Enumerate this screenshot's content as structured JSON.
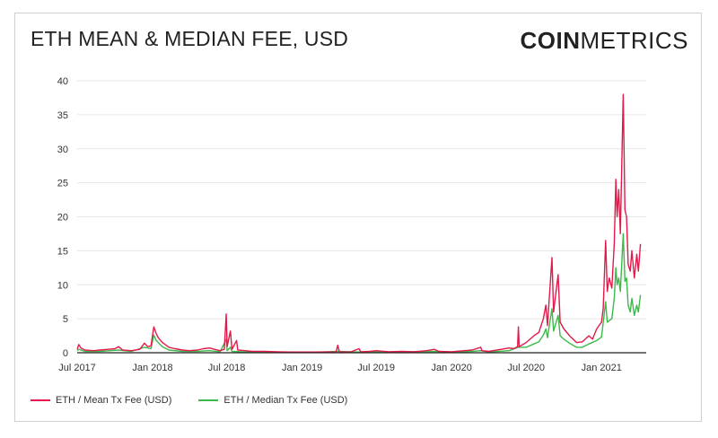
{
  "header": {
    "title": "ETH MEAN & MEDIAN FEE, USD",
    "logo_bold": "COIN",
    "logo_light": "METRICS"
  },
  "colors": {
    "mean": "#e2194b",
    "median": "#3db84a",
    "grid": "#e6e6e6",
    "axis": "#222222"
  },
  "chart_data": {
    "type": "line",
    "title": "ETH MEAN & MEDIAN FEE, USD",
    "xlabel": "",
    "ylabel": "",
    "ylim": [
      0,
      40
    ],
    "yticks": [
      0,
      5,
      10,
      15,
      20,
      25,
      30,
      35,
      40
    ],
    "xlim": [
      "2017-07-01",
      "2021-04-20"
    ],
    "xticks": [
      "Jul 2017",
      "Jan 2018",
      "Jul 2018",
      "Jan 2019",
      "Jul 2019",
      "Jan 2020",
      "Jul 2020",
      "Jan 2021"
    ],
    "xtick_dates": [
      "2017-07-01",
      "2018-01-01",
      "2018-07-01",
      "2019-01-01",
      "2019-07-01",
      "2020-01-01",
      "2020-07-01",
      "2021-01-01"
    ],
    "grid": true,
    "legend": "bottom-left",
    "series": [
      {
        "name": "ETH / Mean Tx Fee (USD)",
        "points": [
          [
            "2017-07-01",
            0.5
          ],
          [
            "2017-07-05",
            1.2
          ],
          [
            "2017-07-10",
            0.7
          ],
          [
            "2017-07-20",
            0.4
          ],
          [
            "2017-08-10",
            0.3
          ],
          [
            "2017-08-25",
            0.4
          ],
          [
            "2017-09-15",
            0.5
          ],
          [
            "2017-10-01",
            0.6
          ],
          [
            "2017-10-10",
            0.9
          ],
          [
            "2017-10-20",
            0.4
          ],
          [
            "2017-11-10",
            0.3
          ],
          [
            "2017-12-01",
            0.5
          ],
          [
            "2017-12-12",
            1.4
          ],
          [
            "2017-12-20",
            0.9
          ],
          [
            "2017-12-28",
            1.0
          ],
          [
            "2018-01-04",
            3.8
          ],
          [
            "2018-01-10",
            2.8
          ],
          [
            "2018-01-15",
            2.2
          ],
          [
            "2018-01-25",
            1.5
          ],
          [
            "2018-02-10",
            0.8
          ],
          [
            "2018-02-25",
            0.6
          ],
          [
            "2018-03-15",
            0.4
          ],
          [
            "2018-04-01",
            0.3
          ],
          [
            "2018-04-20",
            0.4
          ],
          [
            "2018-05-05",
            0.6
          ],
          [
            "2018-05-20",
            0.7
          ],
          [
            "2018-06-01",
            0.5
          ],
          [
            "2018-06-15",
            0.3
          ],
          [
            "2018-06-25",
            0.5
          ],
          [
            "2018-06-30",
            5.7
          ],
          [
            "2018-07-02",
            0.9
          ],
          [
            "2018-07-10",
            3.2
          ],
          [
            "2018-07-14",
            0.5
          ],
          [
            "2018-07-25",
            1.8
          ],
          [
            "2018-07-28",
            0.4
          ],
          [
            "2018-08-15",
            0.3
          ],
          [
            "2018-09-01",
            0.2
          ],
          [
            "2018-10-01",
            0.2
          ],
          [
            "2018-11-01",
            0.15
          ],
          [
            "2018-12-01",
            0.1
          ],
          [
            "2019-01-01",
            0.1
          ],
          [
            "2019-02-01",
            0.1
          ],
          [
            "2019-03-01",
            0.12
          ],
          [
            "2019-03-25",
            0.1
          ],
          [
            "2019-03-29",
            1.1
          ],
          [
            "2019-04-02",
            0.12
          ],
          [
            "2019-05-01",
            0.15
          ],
          [
            "2019-05-20",
            0.6
          ],
          [
            "2019-05-24",
            0.15
          ],
          [
            "2019-06-15",
            0.2
          ],
          [
            "2019-07-01",
            0.3
          ],
          [
            "2019-08-01",
            0.15
          ],
          [
            "2019-09-01",
            0.2
          ],
          [
            "2019-10-01",
            0.15
          ],
          [
            "2019-11-01",
            0.3
          ],
          [
            "2019-11-20",
            0.5
          ],
          [
            "2019-12-01",
            0.2
          ],
          [
            "2020-01-01",
            0.15
          ],
          [
            "2020-02-01",
            0.3
          ],
          [
            "2020-02-20",
            0.4
          ],
          [
            "2020-03-12",
            0.8
          ],
          [
            "2020-03-15",
            0.3
          ],
          [
            "2020-04-01",
            0.2
          ],
          [
            "2020-05-01",
            0.5
          ],
          [
            "2020-05-20",
            0.7
          ],
          [
            "2020-06-01",
            0.6
          ],
          [
            "2020-06-10",
            0.9
          ],
          [
            "2020-06-12",
            3.8
          ],
          [
            "2020-06-14",
            0.9
          ],
          [
            "2020-07-01",
            1.5
          ],
          [
            "2020-07-20",
            2.5
          ],
          [
            "2020-08-01",
            3.0
          ],
          [
            "2020-08-12",
            5.0
          ],
          [
            "2020-08-18",
            7.0
          ],
          [
            "2020-08-22",
            4.0
          ],
          [
            "2020-09-02",
            14.0
          ],
          [
            "2020-09-06",
            6.0
          ],
          [
            "2020-09-17",
            11.5
          ],
          [
            "2020-09-22",
            4.5
          ],
          [
            "2020-10-01",
            3.5
          ],
          [
            "2020-10-15",
            2.5
          ],
          [
            "2020-11-01",
            1.5
          ],
          [
            "2020-11-15",
            1.6
          ],
          [
            "2020-12-01",
            2.5
          ],
          [
            "2020-12-10",
            2.0
          ],
          [
            "2020-12-20",
            3.5
          ],
          [
            "2021-01-01",
            4.5
          ],
          [
            "2021-01-05",
            6.5
          ],
          [
            "2021-01-11",
            16.5
          ],
          [
            "2021-01-15",
            9.0
          ],
          [
            "2021-01-20",
            11.0
          ],
          [
            "2021-01-26",
            9.5
          ],
          [
            "2021-02-01",
            16.0
          ],
          [
            "2021-02-05",
            25.5
          ],
          [
            "2021-02-08",
            20.0
          ],
          [
            "2021-02-12",
            24.0
          ],
          [
            "2021-02-16",
            17.5
          ],
          [
            "2021-02-23",
            38.0
          ],
          [
            "2021-02-27",
            21.0
          ],
          [
            "2021-03-03",
            20.0
          ],
          [
            "2021-03-07",
            13.0
          ],
          [
            "2021-03-12",
            12.0
          ],
          [
            "2021-03-16",
            15.0
          ],
          [
            "2021-03-22",
            11.0
          ],
          [
            "2021-03-28",
            14.5
          ],
          [
            "2021-04-01",
            12.0
          ],
          [
            "2021-04-06",
            16.0
          ]
        ]
      },
      {
        "name": "ETH / Median Tx Fee (USD)",
        "points": [
          [
            "2017-07-01",
            0.3
          ],
          [
            "2017-07-05",
            0.5
          ],
          [
            "2017-07-20",
            0.2
          ],
          [
            "2017-08-25",
            0.2
          ],
          [
            "2017-10-10",
            0.4
          ],
          [
            "2017-11-10",
            0.2
          ],
          [
            "2017-12-12",
            0.8
          ],
          [
            "2017-12-28",
            0.6
          ],
          [
            "2018-01-04",
            2.6
          ],
          [
            "2018-01-10",
            1.8
          ],
          [
            "2018-01-25",
            0.9
          ],
          [
            "2018-02-10",
            0.4
          ],
          [
            "2018-03-15",
            0.2
          ],
          [
            "2018-04-20",
            0.2
          ],
          [
            "2018-05-20",
            0.3
          ],
          [
            "2018-06-15",
            0.15
          ],
          [
            "2018-06-30",
            2.0
          ],
          [
            "2018-07-02",
            0.3
          ],
          [
            "2018-07-10",
            0.8
          ],
          [
            "2018-07-14",
            0.2
          ],
          [
            "2018-08-15",
            0.12
          ],
          [
            "2018-10-01",
            0.08
          ],
          [
            "2018-12-01",
            0.05
          ],
          [
            "2019-02-01",
            0.05
          ],
          [
            "2019-03-29",
            0.2
          ],
          [
            "2019-05-20",
            0.1
          ],
          [
            "2019-07-01",
            0.15
          ],
          [
            "2019-09-01",
            0.1
          ],
          [
            "2019-11-20",
            0.2
          ],
          [
            "2020-01-01",
            0.08
          ],
          [
            "2020-02-20",
            0.2
          ],
          [
            "2020-03-12",
            0.3
          ],
          [
            "2020-04-01",
            0.1
          ],
          [
            "2020-05-20",
            0.3
          ],
          [
            "2020-06-12",
            0.8
          ],
          [
            "2020-07-01",
            0.8
          ],
          [
            "2020-07-20",
            1.3
          ],
          [
            "2020-08-01",
            1.6
          ],
          [
            "2020-08-12",
            2.6
          ],
          [
            "2020-08-18",
            3.5
          ],
          [
            "2020-08-22",
            2.2
          ],
          [
            "2020-09-02",
            6.5
          ],
          [
            "2020-09-06",
            3.2
          ],
          [
            "2020-09-17",
            5.5
          ],
          [
            "2020-09-22",
            2.5
          ],
          [
            "2020-10-01",
            2.0
          ],
          [
            "2020-10-15",
            1.4
          ],
          [
            "2020-11-01",
            0.8
          ],
          [
            "2020-11-15",
            0.8
          ],
          [
            "2020-12-01",
            1.3
          ],
          [
            "2020-12-20",
            1.8
          ],
          [
            "2021-01-01",
            2.3
          ],
          [
            "2021-01-11",
            7.5
          ],
          [
            "2021-01-15",
            4.5
          ],
          [
            "2021-01-26",
            5.0
          ],
          [
            "2021-02-01",
            8.0
          ],
          [
            "2021-02-05",
            12.5
          ],
          [
            "2021-02-08",
            10.0
          ],
          [
            "2021-02-12",
            11.0
          ],
          [
            "2021-02-16",
            9.0
          ],
          [
            "2021-02-23",
            17.5
          ],
          [
            "2021-02-27",
            10.5
          ],
          [
            "2021-03-03",
            11.0
          ],
          [
            "2021-03-07",
            7.0
          ],
          [
            "2021-03-12",
            6.0
          ],
          [
            "2021-03-16",
            8.0
          ],
          [
            "2021-03-22",
            5.5
          ],
          [
            "2021-03-28",
            7.0
          ],
          [
            "2021-04-01",
            6.0
          ],
          [
            "2021-04-06",
            8.5
          ]
        ]
      }
    ]
  }
}
